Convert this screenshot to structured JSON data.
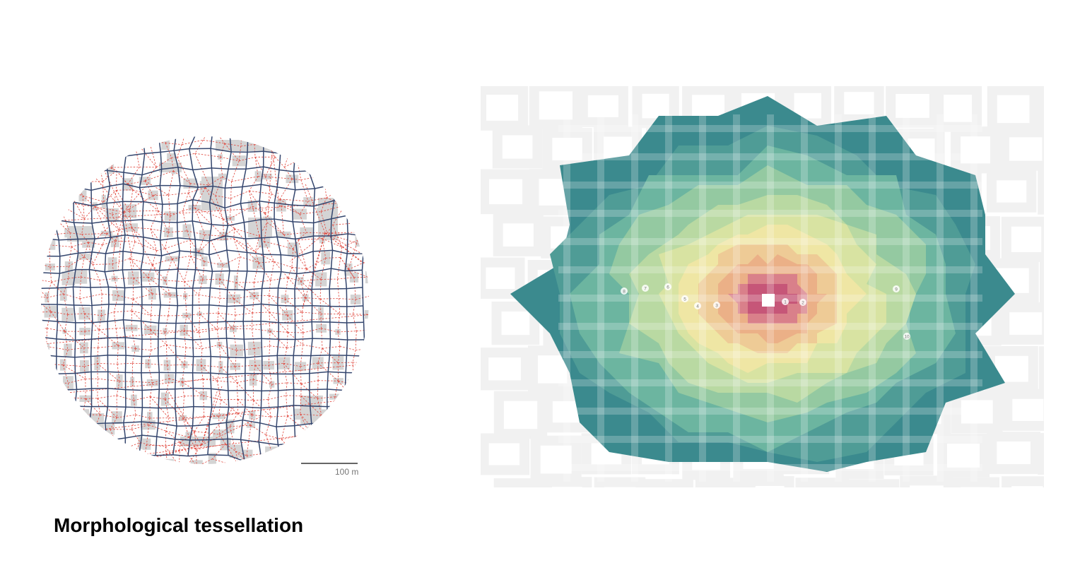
{
  "left_panel": {
    "caption": "Morphological tessellation",
    "scale_label": "100 m",
    "colors": {
      "cell_edges": "#34466e",
      "links": "#e0463c",
      "buildings": "#d4d4d4"
    }
  },
  "right_panel": {
    "markers": [
      "1",
      "2",
      "3",
      "4",
      "5",
      "6",
      "7",
      "8",
      "9",
      "10"
    ],
    "colors": {
      "background_blocks": "#f1f1f1",
      "ramp": [
        "#3b8a8e",
        "#6cb5a0",
        "#b9d9a2",
        "#efe6a4",
        "#ebb087",
        "#c65678"
      ]
    }
  }
}
